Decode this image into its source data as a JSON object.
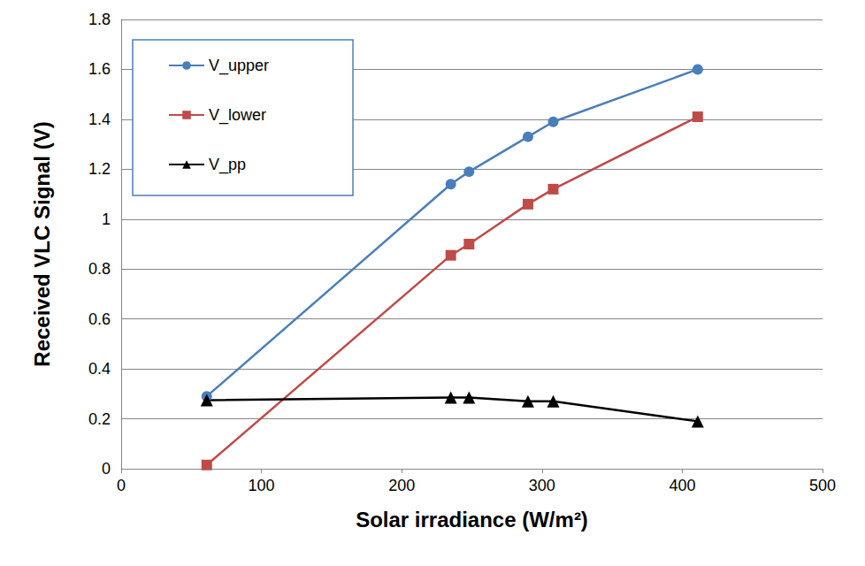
{
  "chart_data": {
    "type": "line",
    "x_label": "Solar irradiance (W/m²)",
    "y_label": "Received VLC Signal (V)",
    "x": [
      61,
      235,
      248,
      290,
      308,
      411
    ],
    "series": [
      {
        "name": "V_upper",
        "color": "#4a7ebb",
        "marker": "circle",
        "values": [
          0.29,
          1.14,
          1.19,
          1.33,
          1.39,
          1.6
        ]
      },
      {
        "name": "V_lower",
        "color": "#be4b48",
        "marker": "square",
        "values": [
          0.015,
          0.855,
          0.9,
          1.06,
          1.12,
          1.41
        ]
      },
      {
        "name": "V_pp",
        "color": "#000000",
        "marker": "triangle",
        "values": [
          0.275,
          0.285,
          0.285,
          0.27,
          0.27,
          0.19
        ]
      }
    ],
    "xlim": [
      0,
      500
    ],
    "xticks": [
      0,
      100,
      200,
      300,
      400,
      500
    ],
    "ylim": [
      0,
      1.8
    ],
    "yticks": [
      0,
      0.2,
      0.4,
      0.6,
      0.8,
      1,
      1.2,
      1.4,
      1.6,
      1.8
    ],
    "grid": true,
    "legend": "upper left"
  }
}
